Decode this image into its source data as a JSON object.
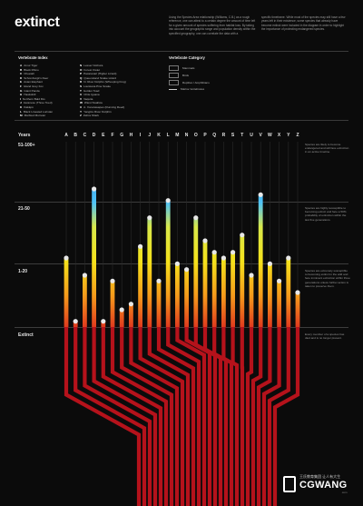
{
  "title": "extinct",
  "intro": {
    "col1": "Using the Species Area relationship (Williams, C.B.) as a rough reference, one can attest to a certain degree the amount of time left for a given amount of species suffering from habitat loss. By taking into account the geographic range and population density within the specified geography, one can correlate the data with a",
    "col2": "specific timeframe. While most of the species may still have a few years left in their existence, some species that already have become extinct were included in the diagram in order to highlight the importance of protecting endangered species."
  },
  "index": {
    "title": "Vertebrate Index",
    "col1": [
      {
        "k": "A",
        "name": "Amur Tiger"
      },
      {
        "k": "B",
        "name": "Black Rhino"
      },
      {
        "k": "C",
        "name": "Cheetah"
      },
      {
        "k": "D",
        "name": "Schomburgk's Deer"
      },
      {
        "k": "E",
        "name": "Asian Elephant"
      },
      {
        "k": "F",
        "name": "Island Grey Fox"
      },
      {
        "k": "G",
        "name": "Giant Panda"
      },
      {
        "k": "H",
        "name": "Hawksbill"
      },
      {
        "k": "I",
        "name": "Northern Bald Ibis"
      },
      {
        "k": "J",
        "name": "Javanese (Three Toed)"
      },
      {
        "k": "K",
        "name": "Kākāpō"
      },
      {
        "k": "L",
        "name": "Black Lineated Loristan"
      },
      {
        "k": "M",
        "name": "Marbled Murrelet"
      }
    ],
    "col2": [
      {
        "k": "N",
        "name": "Lesser Nothura"
      },
      {
        "k": "O",
        "name": "Forest Owlet"
      },
      {
        "k": "P",
        "name": "Pacaranari (Higher Lizard)"
      },
      {
        "k": "Q",
        "name": "Queensland Snake Lizard"
      },
      {
        "k": "R",
        "name": "N. River Dolphin (Whooping Frog)"
      },
      {
        "k": "S",
        "name": "Louisiana Pine Snake"
      },
      {
        "k": "T",
        "name": "Golden Toad"
      },
      {
        "k": "U",
        "name": "Chile Iguana"
      },
      {
        "k": "V",
        "name": "Vaquita"
      },
      {
        "k": "W",
        "name": "Wiest Swallow"
      },
      {
        "k": "X",
        "name": "A. Xonotawapes (Running Reed)"
      },
      {
        "k": "Y",
        "name": "Yangtze River Dolphin"
      },
      {
        "k": "Z",
        "name": "Zebra Shark"
      }
    ]
  },
  "category": {
    "title": "Vertebrate Category",
    "items": [
      "Mammals",
      "Birds",
      "Reptiles / Amphibians",
      "Marine Vertebrates"
    ]
  },
  "levels": [
    {
      "label": "Years",
      "note": ""
    },
    {
      "label": "51-100+",
      "note": "Species are likely to become endangered and will face extinction in an active timeline."
    },
    {
      "label": "21-50",
      "note": "Species are highly susceptible to becoming extinct and face a 50% probability of extinction within the last five generations."
    },
    {
      "label": "1-20",
      "note": "Species are extremely susceptible to becoming extinct in the wild and face imminent extinction within three generations unless further action is taken to preserve them."
    },
    {
      "label": "Extinct",
      "note": "Every member of a species has died and is no longer present."
    }
  ],
  "letters": [
    "A",
    "B",
    "C",
    "D",
    "E",
    "F",
    "G",
    "H",
    "I",
    "J",
    "K",
    "L",
    "M",
    "N",
    "O",
    "P",
    "Q",
    "R",
    "S",
    "T",
    "U",
    "V",
    "W",
    "X",
    "Y",
    "Z"
  ],
  "chart_data": {
    "type": "diagram",
    "unit": "years until extinction (scale: 0 = extinct, 1 = 1-20, 2 = 21-50, 3 = 51-100+)",
    "species_levels": [
      1.2,
      0.1,
      0.9,
      2.4,
      0.1,
      0.8,
      0.3,
      0.4,
      1.4,
      1.9,
      0.8,
      2.2,
      1.1,
      1.0,
      1.9,
      1.5,
      1.3,
      1.2,
      1.3,
      1.6,
      0.9,
      2.3,
      1.1,
      0.8,
      1.2,
      0.6
    ]
  },
  "colors": {
    "bg": "#0b0b0b",
    "extinct": "#c4161c",
    "near": "#f5a623",
    "mid": "#f5e21b",
    "far": "#2e86de",
    "branch": "#b5121b"
  },
  "watermark": {
    "cn": "王氏教育集团 让人有大生",
    "en": "CGWANG",
    "url": ".com"
  }
}
